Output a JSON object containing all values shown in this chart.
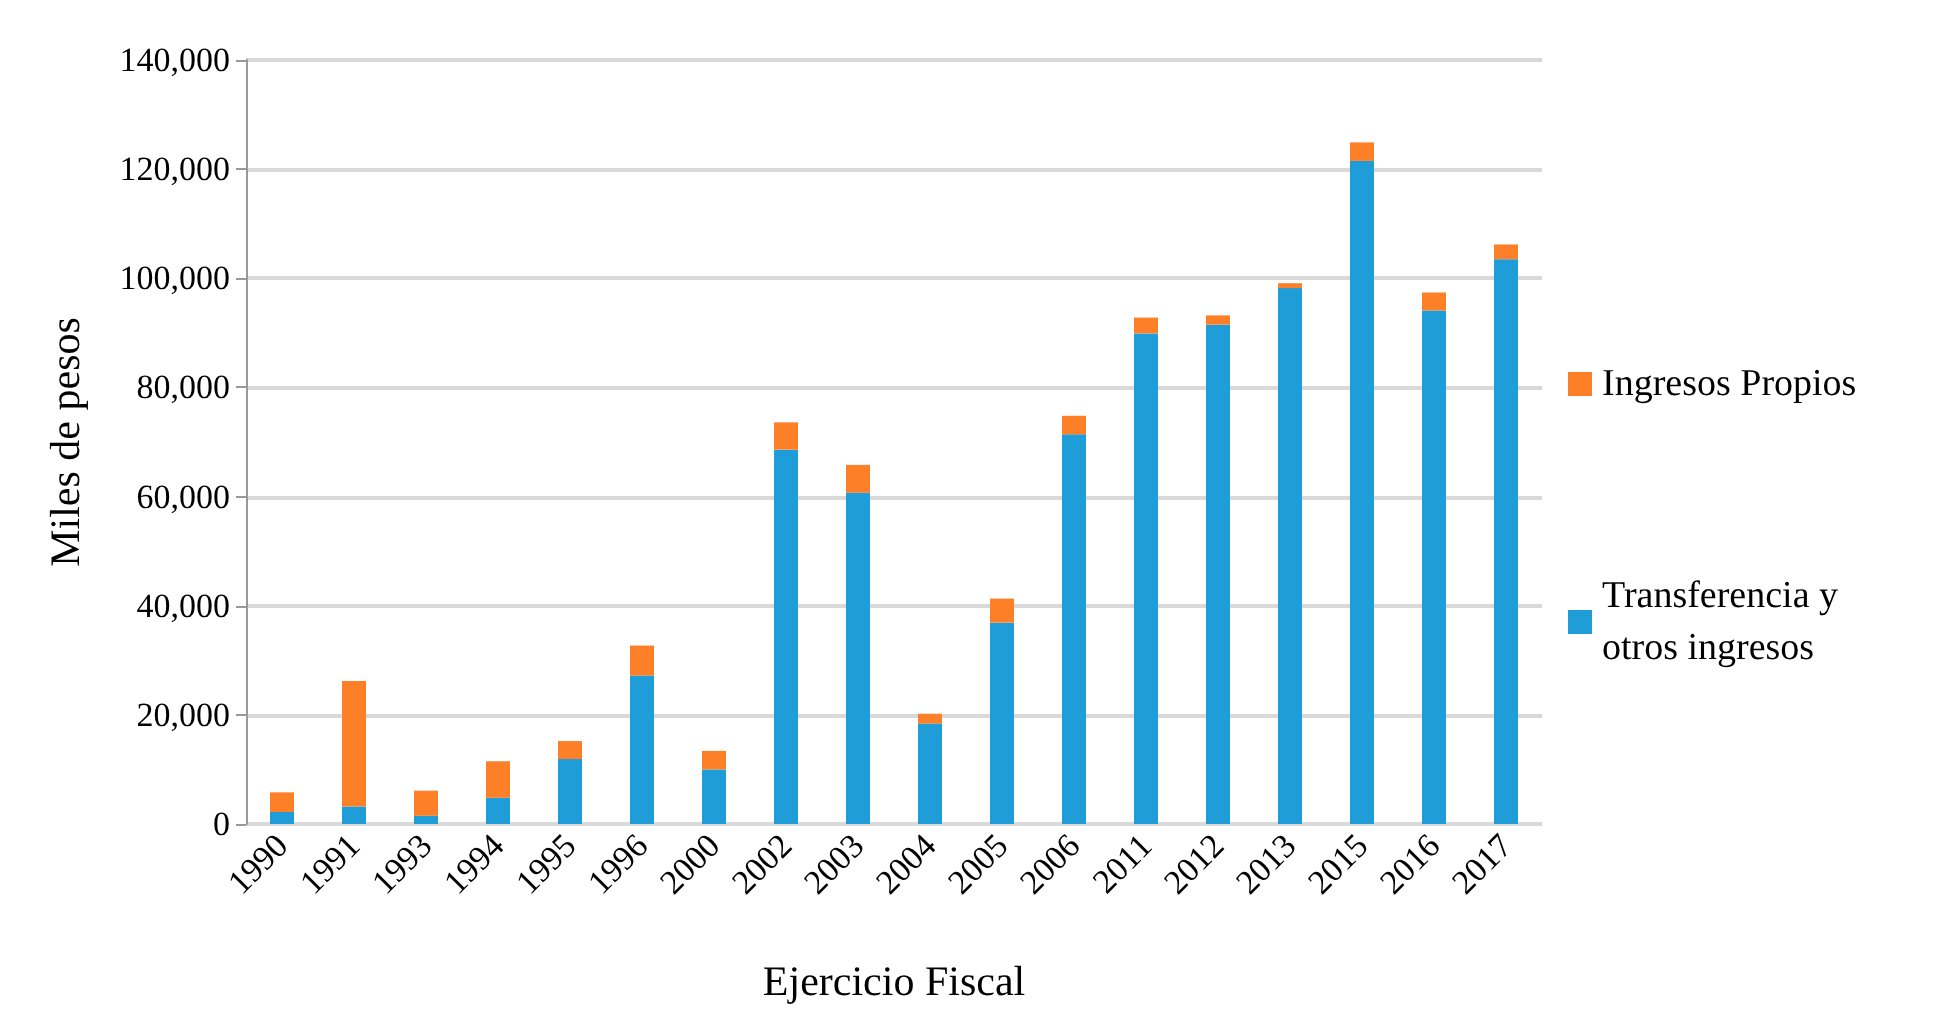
{
  "chart_data": {
    "type": "bar",
    "stacked": true,
    "xlabel": "Ejercicio Fiscal",
    "ylabel": "Miles de pesos",
    "categories": [
      "1990",
      "1991",
      "1993",
      "1994",
      "1995",
      "1996",
      "2000",
      "2002",
      "2003",
      "2004",
      "2005",
      "2006",
      "2011",
      "2012",
      "2013",
      "2015",
      "2016",
      "2017"
    ],
    "series": [
      {
        "name": "Transferencia y otros ingresos",
        "color": "#1f9dd9",
        "values": [
          2200,
          3200,
          1500,
          4800,
          11900,
          27200,
          10000,
          68600,
          60700,
          18400,
          36900,
          71400,
          89900,
          91500,
          98200,
          121500,
          94100,
          103500
        ]
      },
      {
        "name": "Ingresos Propios",
        "color": "#fd7f28",
        "values": [
          3600,
          23000,
          4600,
          6700,
          3300,
          5500,
          3400,
          5000,
          5100,
          1800,
          4400,
          3400,
          2900,
          1700,
          900,
          3400,
          3300,
          2700
        ]
      }
    ],
    "ylim": [
      0,
      140000
    ],
    "yticks": [
      0,
      {
        "value": 20000,
        "label": "20,000"
      },
      {
        "value": 40000,
        "label": "40,000"
      },
      {
        "value": 60000,
        "label": "60,000"
      },
      {
        "value": 80000,
        "label": "80,000"
      },
      {
        "value": 100000,
        "label": "100,000"
      },
      {
        "value": 120000,
        "label": "120,000"
      },
      {
        "value": 140000,
        "label": "140,000"
      }
    ],
    "grid": "y",
    "legend": "right"
  }
}
